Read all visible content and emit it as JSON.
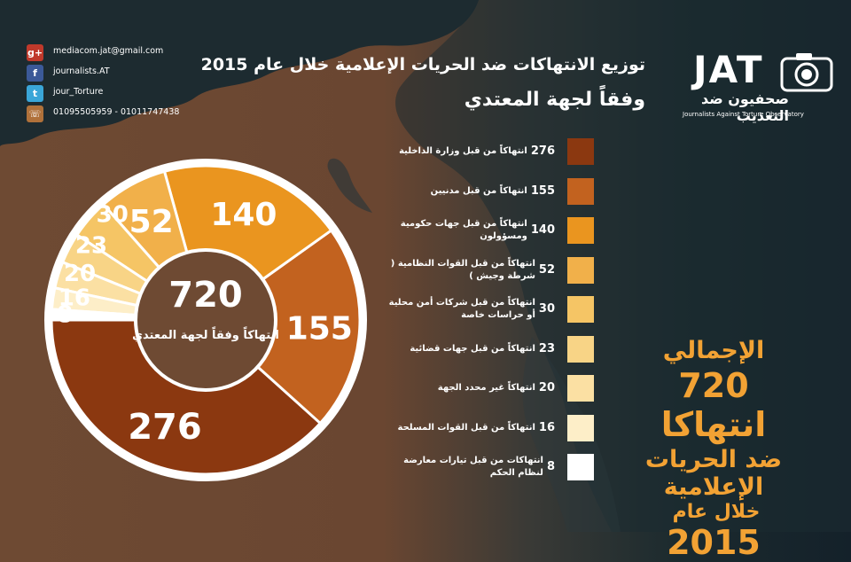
{
  "contacts": [
    {
      "icon": "google-plus-icon",
      "text": "mediacom.jat@gmail.com"
    },
    {
      "icon": "facebook-icon",
      "text": "journalists.AT"
    },
    {
      "icon": "twitter-icon",
      "text": "jour_Torture"
    },
    {
      "icon": "phone-icon",
      "text": "01095505959 - 01011747438"
    }
  ],
  "logo": {
    "letters": "JAT",
    "arabic": "صحفيون ضد التعذيب",
    "english": "Journalists Against Torture Observatory"
  },
  "header": {
    "title_line1": "توزيع الانتهاكات ضد الحريات الإعلامية خلال عام 2015",
    "title_line2": "وفقاً لجهة المعتدي"
  },
  "center": {
    "total": "720",
    "label": "انتهاكاً وفقاً لجهة المعتدي"
  },
  "chart_data": {
    "type": "pie",
    "title": "توزيع الانتهاكات ضد الحريات الإعلامية خلال عام 2015",
    "subtitle": "وفقاً لجهة المعتدي",
    "categories": [
      "انتهاكاً من قبل وزارة الداخلية",
      "انتهاكاً من قبل مدنيين",
      "انتهاكاً من قبل جهات حكومية ومسؤولون",
      "انتهاكاً من قبل القوات النظامية ( شرطة وجيش )",
      "انتهاكاً من قبل شركات أمن محلية أو حراسات خاصة",
      "انتهاكاً من قبل جهات قضائية",
      "انتهاكاً غير محدد الجهة",
      "انتهاكاً من قبل القوات المسلحة",
      "انتهاكات من قبل تيارات معارضة لنظام الحكم"
    ],
    "values": [
      276,
      155,
      140,
      52,
      30,
      23,
      20,
      16,
      8
    ],
    "colors": [
      "#8b3810",
      "#c2621f",
      "#ea951f",
      "#f1b04a",
      "#f5c565",
      "#f8d486",
      "#fbe0a3",
      "#fdeec8",
      "#ffffff"
    ],
    "total": 720
  },
  "summary": {
    "heading": "الإجمالي",
    "number_line": "720 انتهاكا",
    "line3": "ضد الحريات الإعلامية",
    "line4": "خلال عام",
    "year": "2015"
  }
}
